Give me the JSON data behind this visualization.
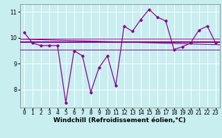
{
  "windchill_x": [
    0,
    1,
    2,
    3,
    4,
    5,
    6,
    7,
    8,
    9,
    10,
    11,
    12,
    13,
    14,
    15,
    16,
    17,
    18,
    19,
    20,
    21,
    22,
    23
  ],
  "windchill_y": [
    10.2,
    9.8,
    9.7,
    9.7,
    9.7,
    7.5,
    9.5,
    9.3,
    7.9,
    8.85,
    9.3,
    8.15,
    10.45,
    10.25,
    10.7,
    11.1,
    10.8,
    10.65,
    9.55,
    9.65,
    9.8,
    10.3,
    10.45,
    9.8
  ],
  "avg_line_y": 9.83,
  "trend_start_y": 9.95,
  "trend_end_y": 9.73,
  "min_line_y": 9.55,
  "max_line_y": 9.98,
  "bg_color": "#c8eef0",
  "line_color": "#8b008b",
  "grid_color": "#ffffff",
  "ylim": [
    7.3,
    11.3
  ],
  "yticks": [
    8,
    9,
    10,
    11
  ],
  "xlim": [
    -0.5,
    23.5
  ],
  "xlabel": "Windchill (Refroidissement éolien,°C)",
  "xlabel_fontsize": 6.5,
  "tick_fontsize": 5.8
}
